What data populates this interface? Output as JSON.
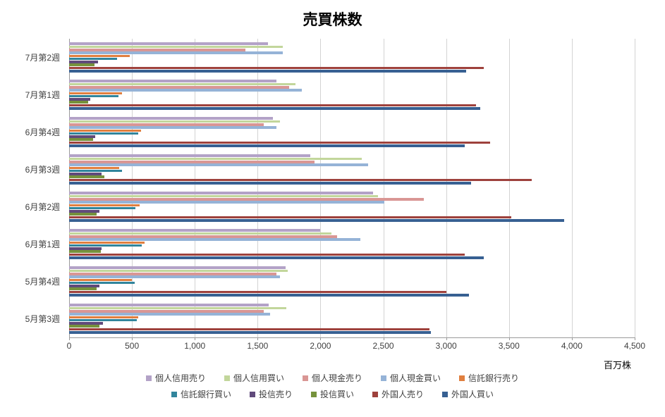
{
  "chart_data": {
    "type": "bar",
    "orientation": "horizontal",
    "title": "売買株数",
    "unit_label": "百万株",
    "grid": true,
    "legend_position": "bottom",
    "xlim": [
      0,
      4500
    ],
    "x_ticks": [
      "0",
      "500",
      "1,000",
      "1,500",
      "2,000",
      "2,500",
      "3,000",
      "3,500",
      "4,000",
      "4,500"
    ],
    "categories": [
      "7月第2週",
      "7月第1週",
      "6月第4週",
      "6月第3週",
      "6月第2週",
      "6月第1週",
      "5月第4週",
      "5月第3週"
    ],
    "series": [
      {
        "name": "個人信用売り",
        "color": "#b3a2c7",
        "values": [
          1580,
          1650,
          1620,
          1920,
          2420,
          2000,
          1720,
          1590
        ]
      },
      {
        "name": "個人信用買い",
        "color": "#c2d69b",
        "values": [
          1700,
          1800,
          1680,
          2330,
          2460,
          2090,
          1740,
          1730
        ]
      },
      {
        "name": "個人現金売り",
        "color": "#d99694",
        "values": [
          1400,
          1750,
          1550,
          1950,
          2820,
          2130,
          1650,
          1550
        ]
      },
      {
        "name": "個人現金買い",
        "color": "#95b3d7",
        "values": [
          1700,
          1850,
          1650,
          2380,
          2510,
          2320,
          1680,
          1600
        ]
      },
      {
        "name": "信託銀行売り",
        "color": "#e07f3f",
        "values": [
          480,
          420,
          570,
          400,
          560,
          600,
          500,
          550
        ]
      },
      {
        "name": "信託銀行買い",
        "color": "#31859c",
        "values": [
          380,
          390,
          550,
          420,
          530,
          580,
          520,
          540
        ]
      },
      {
        "name": "投信売り",
        "color": "#604a7b",
        "values": [
          230,
          170,
          210,
          260,
          240,
          260,
          240,
          270
        ]
      },
      {
        "name": "投信買い",
        "color": "#76923c",
        "values": [
          200,
          150,
          190,
          280,
          220,
          250,
          220,
          240
        ]
      },
      {
        "name": "外国人売り",
        "color": "#9e413c",
        "values": [
          3300,
          3240,
          3350,
          3680,
          3520,
          3150,
          3000,
          2870
        ]
      },
      {
        "name": "外国人買い",
        "color": "#376092",
        "values": [
          3160,
          3270,
          3150,
          3200,
          3940,
          3300,
          3180,
          2880
        ]
      }
    ],
    "legend_rows": [
      [
        0,
        1,
        2,
        3,
        4
      ],
      [
        5,
        6,
        7,
        8,
        9
      ]
    ]
  }
}
